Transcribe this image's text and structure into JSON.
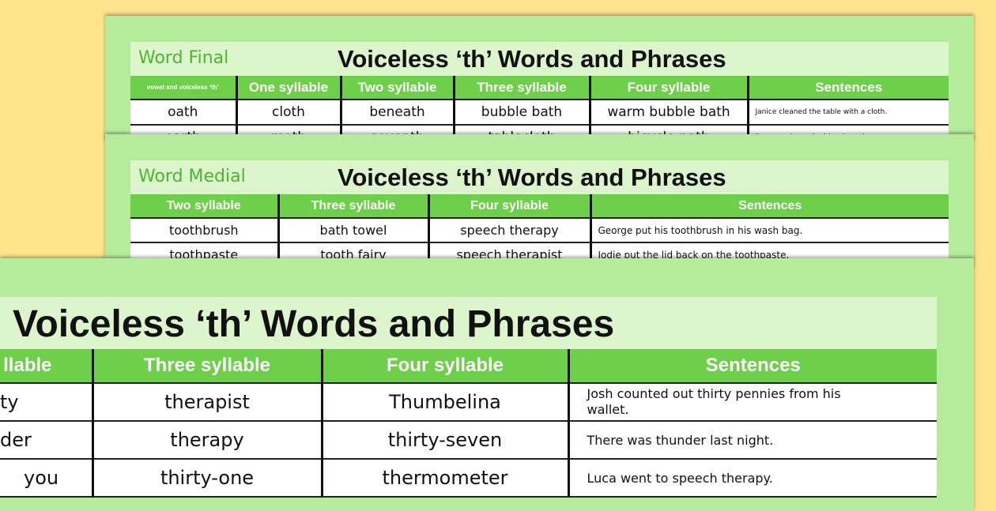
{
  "sheets": [
    {
      "subtitle": "Word Final",
      "title": "Voiceless ‘th’ Words and Phrases",
      "headers": [
        "vowel and voiceless ‘th’",
        "One syllable",
        "Two syllable",
        "Three syllable",
        "Four syllable",
        "Sentences"
      ],
      "rows": [
        [
          "oath",
          "cloth",
          "beneath",
          "bubble bath",
          "warm bubble bath",
          "Janice cleaned the table with a cloth."
        ],
        [
          "earth",
          "moth",
          "seventh",
          "tablecloth",
          "bicycle path",
          "Danny rode on the bicycle path."
        ]
      ]
    },
    {
      "subtitle": "Word Medial",
      "title": "Voiceless ‘th’ Words and Phrases",
      "headers": [
        "Two syllable",
        "Three syllable",
        "Four syllable",
        "Sentences"
      ],
      "rows": [
        [
          "toothbrush",
          "bath towel",
          "speech therapy",
          "George put his toothbrush in his wash bag."
        ],
        [
          "toothpaste",
          "tooth fairy",
          "speech therapist",
          "Jodie put the lid back on the toothpaste."
        ]
      ]
    },
    {
      "title": "Voiceless ‘th’ Words and Phrases",
      "headers": [
        "llable",
        "Three syllable",
        "Four syllable",
        "Sentences"
      ],
      "rows": [
        [
          "ty",
          "therapist",
          "Thumbelina",
          "Josh counted out thirty pennies from his wallet."
        ],
        [
          "der",
          "therapy",
          "thirty-seven",
          "There was thunder last night."
        ],
        [
          "you",
          "thirty-one",
          "thermometer",
          "Luca went to speech therapy."
        ]
      ]
    }
  ],
  "colors": {
    "background": "#fde48c",
    "sheet": "#b5ec9b",
    "band": "#dcf5cd",
    "header": "#6dcf4a",
    "subtitle": "#4fb52e"
  }
}
